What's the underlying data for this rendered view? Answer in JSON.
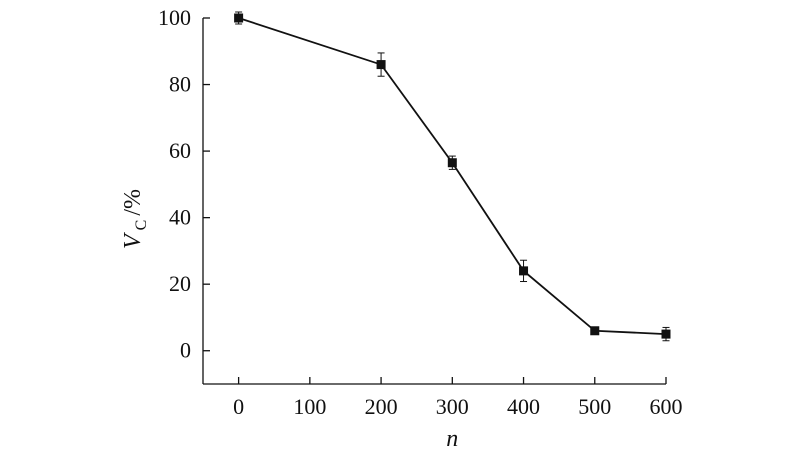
{
  "chart_data": {
    "type": "line",
    "xlabel": "n",
    "ylabel": {
      "symbol": "V",
      "subscript": "C",
      "unit": "/%"
    },
    "x_ticks": [
      "0",
      "100",
      "200",
      "300",
      "400",
      "500",
      "600"
    ],
    "y_ticks": [
      "0",
      "20",
      "40",
      "60",
      "80",
      "100"
    ],
    "xlim": [
      -50,
      600
    ],
    "ylim": [
      -10,
      100
    ],
    "grid": false,
    "series": [
      {
        "marker": "square",
        "color": "#111111",
        "x": [
          0,
          200,
          300,
          400,
          500,
          600
        ],
        "y": [
          100,
          86,
          56.5,
          24,
          6,
          5
        ],
        "error": [
          1.8,
          3.5,
          2,
          3.2,
          1,
          2
        ]
      }
    ]
  }
}
